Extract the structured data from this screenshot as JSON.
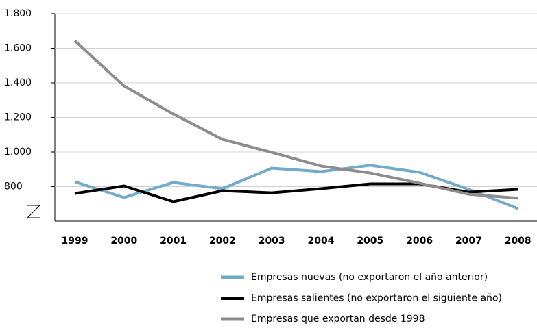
{
  "chart_data": {
    "type": "line",
    "categories": [
      "1999",
      "2000",
      "2001",
      "2002",
      "2003",
      "2004",
      "2005",
      "2006",
      "2007",
      "2008"
    ],
    "series": [
      {
        "name": "Empresas nuevas (no exportaron el año anterior)",
        "color": "#72aac9",
        "values": [
          828,
          737,
          824,
          788,
          907,
          887,
          923,
          883,
          784,
          673
        ]
      },
      {
        "name": "Empresas salientes (no exportaron el siguiente año)",
        "color": "#000000",
        "values": [
          760,
          804,
          713,
          776,
          764,
          788,
          816,
          816,
          768,
          784
        ]
      },
      {
        "name": "Empresas que exportan desde 1998",
        "color": "#8c8c8c",
        "values": [
          1644,
          1382,
          1220,
          1073,
          998,
          919,
          879,
          820,
          756,
          733
        ]
      }
    ],
    "ylim": [
      600,
      1800
    ],
    "yticks": [
      800,
      {
        "value": 1000,
        "label": "1.000"
      },
      {
        "value": 1200,
        "label": "1.200"
      },
      {
        "value": 1400,
        "label": "1.400"
      },
      {
        "value": 1600,
        "label": "1.600"
      },
      {
        "value": 1800,
        "label": "1.800"
      }
    ],
    "grid": true,
    "legend": "bottom"
  }
}
